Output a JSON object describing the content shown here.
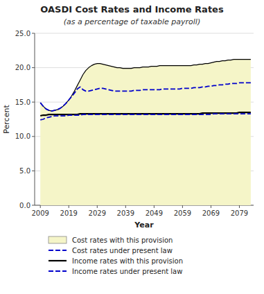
{
  "chart_data": {
    "type": "line",
    "title": "OASDI Cost Rates and Income Rates",
    "subtitle": "(as a percentage of taxable payroll)",
    "x_label": "Year",
    "y_label": "Percent",
    "x": [
      2009,
      2010,
      2011,
      2012,
      2013,
      2014,
      2015,
      2016,
      2017,
      2018,
      2019,
      2020,
      2021,
      2022,
      2023,
      2024,
      2025,
      2026,
      2027,
      2028,
      2029,
      2030,
      2031,
      2032,
      2033,
      2034,
      2035,
      2036,
      2037,
      2038,
      2039,
      2040,
      2041,
      2042,
      2043,
      2044,
      2045,
      2046,
      2047,
      2048,
      2049,
      2050,
      2051,
      2052,
      2053,
      2054,
      2055,
      2056,
      2057,
      2058,
      2059,
      2060,
      2061,
      2062,
      2063,
      2064,
      2065,
      2066,
      2067,
      2068,
      2069,
      2070,
      2071,
      2072,
      2073,
      2074,
      2075,
      2076,
      2077,
      2078,
      2079,
      2080,
      2081,
      2082,
      2083
    ],
    "series": [
      {
        "name": "Cost rates with this provision",
        "type": "area",
        "color": "#f5f5c8",
        "line_style": "solid",
        "values": [
          14.9,
          14.4,
          14.0,
          13.8,
          13.7,
          13.8,
          13.9,
          14.1,
          14.4,
          14.8,
          15.3,
          15.9,
          16.6,
          17.4,
          18.2,
          19.0,
          19.6,
          20.0,
          20.3,
          20.5,
          20.6,
          20.6,
          20.5,
          20.4,
          20.3,
          20.2,
          20.1,
          20.0,
          20.0,
          19.9,
          19.9,
          19.9,
          19.9,
          20.0,
          20.0,
          20.0,
          20.1,
          20.1,
          20.1,
          20.2,
          20.2,
          20.2,
          20.3,
          20.3,
          20.3,
          20.3,
          20.3,
          20.3,
          20.3,
          20.3,
          20.3,
          20.3,
          20.3,
          20.3,
          20.4,
          20.4,
          20.5,
          20.5,
          20.6,
          20.6,
          20.7,
          20.8,
          20.9,
          20.9,
          21.0,
          21.0,
          21.1,
          21.1,
          21.2,
          21.2,
          21.2,
          21.2,
          21.2,
          21.2,
          21.2
        ]
      },
      {
        "name": "Cost rates under present law",
        "type": "line",
        "color": "#0000cc",
        "line_style": "dashed",
        "values": [
          14.9,
          14.4,
          14.0,
          13.8,
          13.7,
          13.8,
          13.9,
          14.1,
          14.4,
          14.8,
          15.3,
          15.8,
          16.3,
          16.9,
          17.2,
          16.8,
          16.6,
          16.6,
          16.7,
          16.8,
          16.9,
          17.0,
          17.0,
          16.9,
          16.8,
          16.7,
          16.6,
          16.6,
          16.6,
          16.6,
          16.6,
          16.6,
          16.6,
          16.7,
          16.7,
          16.7,
          16.8,
          16.8,
          16.8,
          16.8,
          16.8,
          16.8,
          16.8,
          16.9,
          16.9,
          16.9,
          16.9,
          16.9,
          16.9,
          16.9,
          17.0,
          17.0,
          17.0,
          17.0,
          17.1,
          17.1,
          17.1,
          17.2,
          17.2,
          17.3,
          17.3,
          17.4,
          17.4,
          17.5,
          17.5,
          17.6,
          17.6,
          17.7,
          17.7,
          17.7,
          17.8,
          17.8,
          17.8,
          17.8,
          17.8
        ]
      },
      {
        "name": "Income rates with this provision",
        "type": "line",
        "color": "#000000",
        "line_style": "solid",
        "values": [
          13.0,
          13.1,
          13.1,
          13.2,
          13.2,
          13.2,
          13.2,
          13.2,
          13.2,
          13.2,
          13.2,
          13.2,
          13.2,
          13.2,
          13.3,
          13.3,
          13.3,
          13.3,
          13.3,
          13.3,
          13.3,
          13.3,
          13.3,
          13.3,
          13.3,
          13.3,
          13.3,
          13.3,
          13.3,
          13.3,
          13.3,
          13.3,
          13.3,
          13.3,
          13.3,
          13.3,
          13.3,
          13.3,
          13.3,
          13.3,
          13.3,
          13.3,
          13.3,
          13.3,
          13.3,
          13.3,
          13.3,
          13.3,
          13.3,
          13.3,
          13.3,
          13.3,
          13.3,
          13.3,
          13.3,
          13.3,
          13.3,
          13.4,
          13.4,
          13.4,
          13.4,
          13.4,
          13.4,
          13.4,
          13.4,
          13.4,
          13.4,
          13.4,
          13.4,
          13.4,
          13.5,
          13.5,
          13.5,
          13.5,
          13.5
        ]
      },
      {
        "name": "Income rates under present law",
        "type": "line",
        "color": "#0000cc",
        "line_style": "dashed",
        "values": [
          12.4,
          12.5,
          12.7,
          12.8,
          12.9,
          13.0,
          13.0,
          13.0,
          13.0,
          13.0,
          13.1,
          13.1,
          13.1,
          13.1,
          13.1,
          13.2,
          13.2,
          13.2,
          13.2,
          13.2,
          13.2,
          13.2,
          13.2,
          13.2,
          13.2,
          13.2,
          13.2,
          13.2,
          13.2,
          13.2,
          13.2,
          13.2,
          13.2,
          13.2,
          13.2,
          13.2,
          13.2,
          13.2,
          13.2,
          13.2,
          13.2,
          13.2,
          13.2,
          13.2,
          13.2,
          13.2,
          13.2,
          13.2,
          13.2,
          13.2,
          13.2,
          13.2,
          13.2,
          13.2,
          13.2,
          13.2,
          13.2,
          13.2,
          13.2,
          13.2,
          13.2,
          13.3,
          13.3,
          13.3,
          13.3,
          13.3,
          13.3,
          13.3,
          13.3,
          13.3,
          13.3,
          13.3,
          13.3,
          13.3,
          13.3
        ]
      }
    ],
    "xlim": [
      2007,
      2084
    ],
    "xticks": [
      2009,
      2019,
      2029,
      2039,
      2049,
      2059,
      2069,
      2079
    ],
    "ylim": [
      0.0,
      25.0
    ],
    "yticks": [
      {
        "value": 0.0,
        "label": "0.0"
      },
      {
        "value": 5.0,
        "label": "5.0"
      },
      {
        "value": 10.0,
        "label": "10.0"
      },
      {
        "value": 15.0,
        "label": "15.0"
      },
      {
        "value": 20.0,
        "label": "20.0"
      },
      {
        "value": 25.0,
        "label": "25.0"
      }
    ],
    "grid": true,
    "legend": "bottom"
  }
}
